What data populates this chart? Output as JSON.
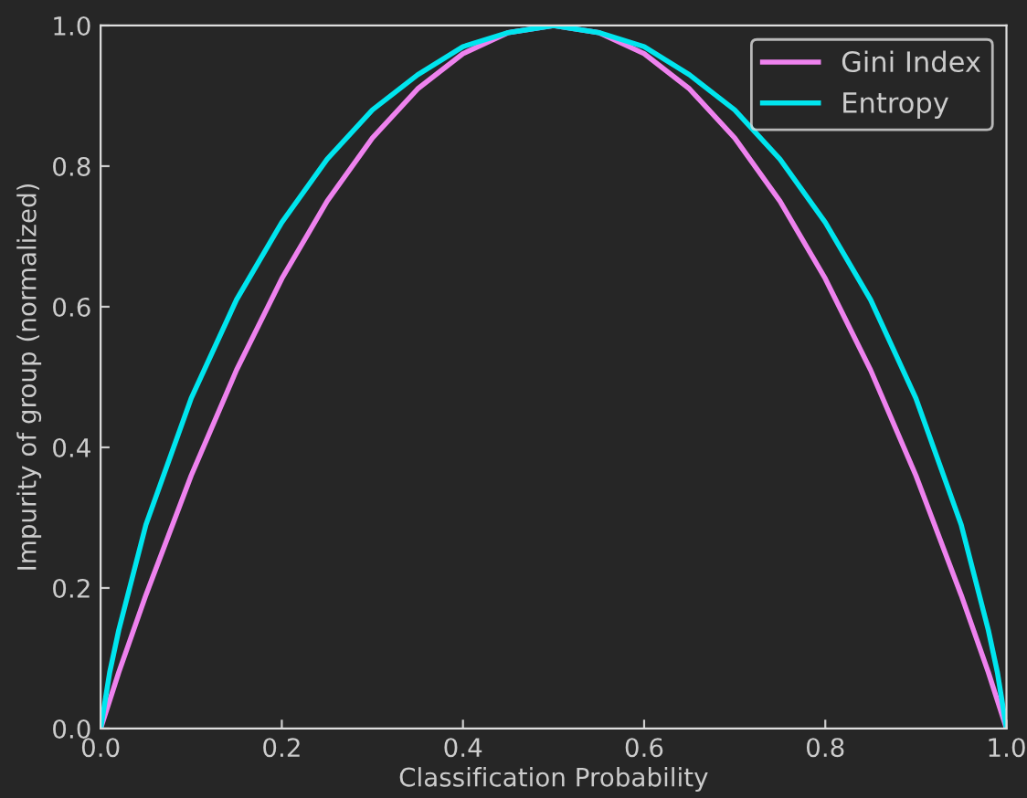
{
  "chart_data": {
    "type": "line",
    "xlabel": "Classification Probability",
    "ylabel": "Impurity of group (normalized)",
    "x": [
      0,
      0.01,
      0.02,
      0.05,
      0.1,
      0.15,
      0.2,
      0.25,
      0.3,
      0.35,
      0.4,
      0.45,
      0.5,
      0.55,
      0.6,
      0.65,
      0.7,
      0.75,
      0.8,
      0.85,
      0.9,
      0.95,
      0.98,
      0.99,
      1
    ],
    "series": [
      {
        "name": "Gini Index",
        "color": "#ee82ee",
        "values": [
          0,
          0.04,
          0.08,
          0.19,
          0.36,
          0.51,
          0.64,
          0.75,
          0.84,
          0.91,
          0.96,
          0.99,
          1.0,
          0.99,
          0.96,
          0.91,
          0.84,
          0.75,
          0.64,
          0.51,
          0.36,
          0.19,
          0.08,
          0.04,
          0
        ]
      },
      {
        "name": "Entropy",
        "color": "#00e5ee",
        "values": [
          0,
          0.08,
          0.14,
          0.29,
          0.47,
          0.61,
          0.72,
          0.81,
          0.88,
          0.93,
          0.97,
          0.99,
          1.0,
          0.99,
          0.97,
          0.93,
          0.88,
          0.81,
          0.72,
          0.61,
          0.47,
          0.29,
          0.14,
          0.08,
          0
        ]
      }
    ],
    "xlim": [
      0,
      1
    ],
    "ylim": [
      0,
      1
    ],
    "xticks": [
      {
        "value": 0,
        "label": "0.0"
      },
      0.2,
      0.4,
      0.6,
      0.8,
      {
        "value": 1,
        "label": "1.0"
      }
    ],
    "yticks": [
      {
        "value": 0,
        "label": "0.0"
      },
      0.2,
      0.4,
      0.6,
      0.8,
      {
        "value": 1,
        "label": "1.0"
      }
    ],
    "grid": false,
    "legend": "top right",
    "marker": "none",
    "line_style": "solid"
  }
}
